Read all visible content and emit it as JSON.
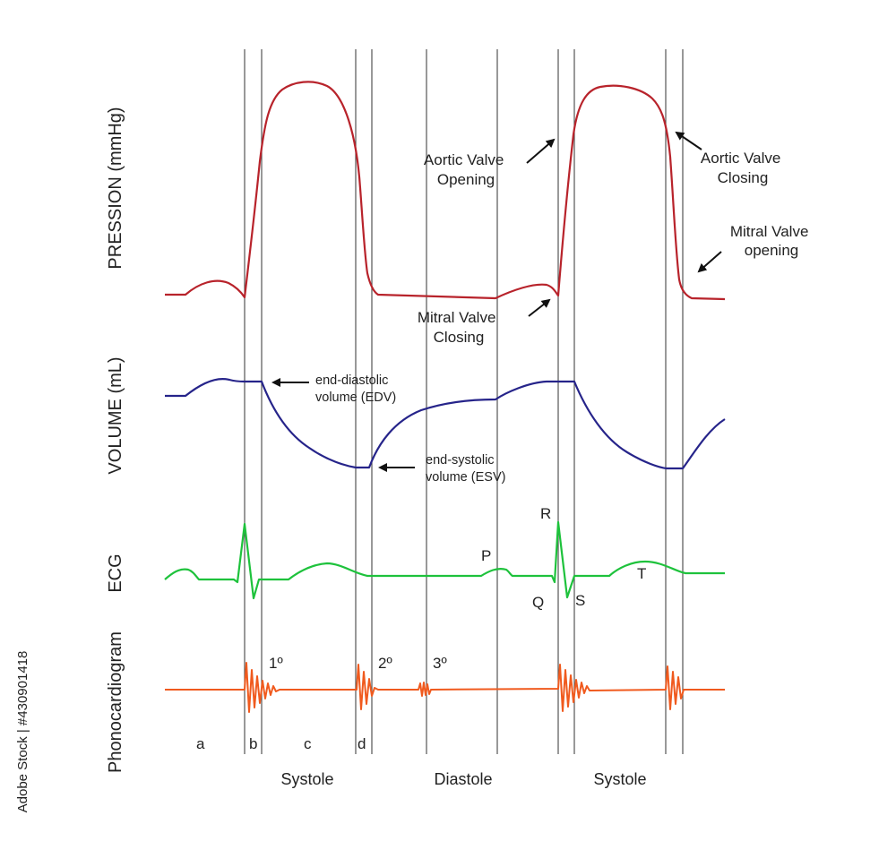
{
  "watermark": "Adobe Stock | #430901418",
  "axis_labels": {
    "pressure": "PRESSION (mmHg)",
    "volume": "VOLUME (mL)",
    "ecg": "ECG",
    "phono": "Phonocardiogram"
  },
  "annotations": {
    "aortic_valve_opening": [
      "Aortic Valve",
      "Opening"
    ],
    "aortic_valve_closing": [
      "Aortic Valve",
      "Closing"
    ],
    "mitral_valve_opening": [
      "Mitral Valve",
      "opening"
    ],
    "mitral_valve_closing": [
      "Mitral Valve",
      "Closing"
    ],
    "edv": [
      "end-diastolic",
      "volume (EDV)"
    ],
    "esv": [
      "end-systolic",
      "volume (ESV)"
    ]
  },
  "ecg_waves": {
    "p": "P",
    "q": "Q",
    "r": "R",
    "s": "S",
    "t": "T"
  },
  "heart_sounds": {
    "first": "1º",
    "second": "2º",
    "third": "3º"
  },
  "phase_letters": [
    "a",
    "b",
    "c",
    "d"
  ],
  "phases": [
    "Systole",
    "Diastole",
    "Systole"
  ],
  "colors": {
    "pressure": "#b8232b",
    "volume": "#26248a",
    "ecg": "#1ec23c",
    "phono": "#f05a1e",
    "gridline": "#555555",
    "text": "#222222"
  }
}
